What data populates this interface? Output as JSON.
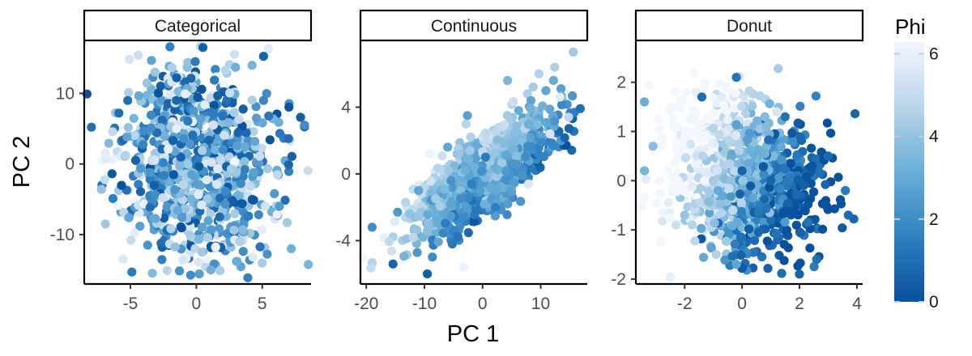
{
  "figure": {
    "xlabel": "PC 1",
    "ylabel": "PC 2",
    "legend_title": "Phi",
    "legend_ticks": [
      "0",
      "2",
      "4",
      "6"
    ],
    "legend_values": [
      0,
      2,
      4,
      6
    ],
    "legend_range": [
      0,
      6.2832
    ],
    "legend_placement": "right",
    "colors": {
      "low": "#08519c",
      "mid_low": "#2f7fc0",
      "mid": "#6aaed6",
      "mid_high": "#b9d5ea",
      "high": "#f2f6fd",
      "axis": "#000000",
      "tick_label": "#4d4d4d"
    }
  },
  "chart_data": [
    {
      "type": "scatter",
      "title": "Categorical",
      "xlim": [
        -8.5,
        8.7
      ],
      "ylim": [
        -17,
        17.5
      ],
      "xticks": [
        -5,
        0,
        5
      ],
      "xtick_labels": [
        "-5",
        "0",
        "5"
      ],
      "yticks": [
        -10,
        0,
        10
      ],
      "ytick_labels": [
        "-10",
        "0",
        "10"
      ],
      "n_points": 1000,
      "color_variable": "Phi",
      "points": [
        {
          "x": -6.9,
          "y": 1.5,
          "phi": 5.8
        },
        {
          "x": -5.2,
          "y": 9.0,
          "phi": 1.1
        },
        {
          "x": -4.4,
          "y": 15.4,
          "phi": 5.2
        },
        {
          "x": -2.0,
          "y": 16.6,
          "phi": 1.6
        },
        {
          "x": -0.7,
          "y": 17.5,
          "phi": 0.7
        },
        {
          "x": 0.5,
          "y": 16.5,
          "phi": 0.5
        },
        {
          "x": 5.1,
          "y": 9.0,
          "phi": 1.8
        },
        {
          "x": 8.2,
          "y": 5.5,
          "phi": 2.0
        },
        {
          "x": 7.0,
          "y": 3.6,
          "phi": 1.0
        },
        {
          "x": 7.0,
          "y": -0.1,
          "phi": 0.7
        },
        {
          "x": 7.2,
          "y": -12.0,
          "phi": 3.3
        },
        {
          "x": 6.3,
          "y": -6.0,
          "phi": 2.5
        },
        {
          "x": -7.2,
          "y": -3.6,
          "phi": 4.0
        },
        {
          "x": -6.9,
          "y": -8.5,
          "phi": 4.2
        },
        {
          "x": -5.1,
          "y": -7.6,
          "phi": 2.9
        },
        {
          "x": -1.0,
          "y": -13.6,
          "phi": 5.5
        },
        {
          "x": 1.1,
          "y": -15.0,
          "phi": 3.2
        },
        {
          "x": 1.8,
          "y": -15.1,
          "phi": 4.4
        },
        {
          "x": 3.3,
          "y": -11.0,
          "phi": 4.5
        },
        {
          "x": 3.1,
          "y": -13.8,
          "phi": 3.1
        },
        {
          "x": -1.5,
          "y": 5.0,
          "phi": 6.0
        },
        {
          "x": 2.0,
          "y": 6.8,
          "phi": 1.2
        },
        {
          "x": -3.5,
          "y": -1.2,
          "phi": 2.3
        },
        {
          "x": 0.4,
          "y": -5.8,
          "phi": 5.6
        }
      ]
    },
    {
      "type": "scatter",
      "title": "Continuous",
      "xlim": [
        -21,
        18
      ],
      "ylim": [
        -6.6,
        8
      ],
      "xticks": [
        -20,
        -10,
        0,
        10
      ],
      "xtick_labels": [
        "-20",
        "-10",
        "0",
        "10"
      ],
      "yticks": [
        -4,
        0,
        4
      ],
      "ytick_labels": [
        "-4",
        "0",
        "4"
      ],
      "n_points": 1000,
      "color_variable": "Phi",
      "points": [
        {
          "x": -19.0,
          "y": -3.2,
          "phi": 2.0
        },
        {
          "x": -15.4,
          "y": -5.4,
          "phi": 0.6
        },
        {
          "x": -14.6,
          "y": -2.3,
          "phi": 2.4
        },
        {
          "x": -9.5,
          "y": -6.0,
          "phi": 0.5
        },
        {
          "x": -3.2,
          "y": -5.6,
          "phi": 6.1
        },
        {
          "x": -2.6,
          "y": 3.5,
          "phi": 2.7
        },
        {
          "x": 4.3,
          "y": 5.6,
          "phi": 3.5
        },
        {
          "x": 9.7,
          "y": 6.0,
          "phi": 4.6
        },
        {
          "x": 12.4,
          "y": 6.4,
          "phi": 4.5
        },
        {
          "x": 15.6,
          "y": 7.3,
          "phi": 4.2
        },
        {
          "x": 13.3,
          "y": 4.6,
          "phi": 5.8
        },
        {
          "x": 14.8,
          "y": 3.4,
          "phi": 4.8
        },
        {
          "x": 11.6,
          "y": 2.4,
          "phi": 5.5
        },
        {
          "x": 7.9,
          "y": -0.6,
          "phi": 5.6
        },
        {
          "x": 2.2,
          "y": -2.0,
          "phi": 1.6
        },
        {
          "x": -5.2,
          "y": -4.2,
          "phi": 1.3
        },
        {
          "x": -11.0,
          "y": -1.0,
          "phi": 2.8
        },
        {
          "x": -6.0,
          "y": 1.6,
          "phi": 2.9
        },
        {
          "x": 0.5,
          "y": 1.0,
          "phi": 1.4
        },
        {
          "x": 5.6,
          "y": 2.5,
          "phi": 3.8
        }
      ]
    },
    {
      "type": "scatter",
      "title": "Donut",
      "xlim": [
        -3.7,
        4.2
      ],
      "ylim": [
        -2.1,
        2.85
      ],
      "xticks": [
        -2,
        0,
        2,
        4
      ],
      "xtick_labels": [
        "-2",
        "0",
        "2",
        "4"
      ],
      "yticks": [
        -2,
        -1,
        0,
        1,
        2
      ],
      "ytick_labels": [
        "-2",
        "-1",
        "0",
        "1",
        "2"
      ],
      "n_points": 1000,
      "color_variable": "Phi",
      "points": [
        {
          "x": -3.4,
          "y": 1.6,
          "phi": 3.1
        },
        {
          "x": -3.1,
          "y": 0.7,
          "phi": 3.8
        },
        {
          "x": -3.4,
          "y": 0.2,
          "phi": 3.4
        },
        {
          "x": -1.6,
          "y": 1.8,
          "phi": 5.9
        },
        {
          "x": -1.4,
          "y": 1.7,
          "phi": 0.9
        },
        {
          "x": -0.2,
          "y": 2.1,
          "phi": 1.2
        },
        {
          "x": -0.7,
          "y": 1.7,
          "phi": 5.8
        },
        {
          "x": 1.2,
          "y": 1.4,
          "phi": 5.5
        },
        {
          "x": 1.5,
          "y": 1.3,
          "phi": 1.1
        },
        {
          "x": 3.0,
          "y": 0.5,
          "phi": 0.8
        },
        {
          "x": 3.6,
          "y": -0.2,
          "phi": 1.4
        },
        {
          "x": 3.7,
          "y": -0.7,
          "phi": 0.9
        },
        {
          "x": 2.6,
          "y": -1.6,
          "phi": 1.0
        },
        {
          "x": 2.0,
          "y": -1.9,
          "phi": 0.6
        },
        {
          "x": -0.2,
          "y": -1.7,
          "phi": 2.9
        },
        {
          "x": -0.9,
          "y": -1.5,
          "phi": 4.6
        },
        {
          "x": -2.3,
          "y": -0.9,
          "phi": 5.2
        },
        {
          "x": -2.0,
          "y": -0.7,
          "phi": 4.0
        },
        {
          "x": 0.0,
          "y": 0.2,
          "phi": 0.6
        },
        {
          "x": 1.0,
          "y": 0.0,
          "phi": 0.7
        },
        {
          "x": -1.0,
          "y": 0.0,
          "phi": 4.3
        },
        {
          "x": 0.6,
          "y": -0.5,
          "phi": 1.5
        }
      ]
    }
  ]
}
